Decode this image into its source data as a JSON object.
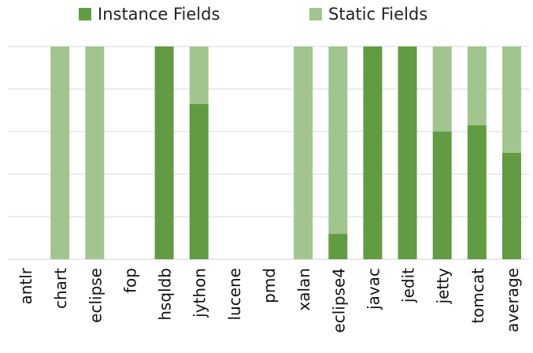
{
  "chart_data": {
    "type": "bar",
    "stacked": true,
    "normalized": true,
    "categories": [
      "antlr",
      "chart",
      "eclipse",
      "fop",
      "hsqldb",
      "jython",
      "lucene",
      "pmd",
      "xalan",
      "eclipse4",
      "javac",
      "jedit",
      "jetty",
      "tomcat",
      "average"
    ],
    "series": [
      {
        "name": "Instance Fields",
        "color": "#629c42",
        "values": [
          0,
          0,
          0,
          0,
          1.0,
          0.73,
          0,
          0,
          0,
          0.12,
          1.0,
          1.0,
          0.6,
          0.63,
          0.5
        ]
      },
      {
        "name": "Static Fields",
        "color": "#a2c58f",
        "values": [
          0,
          1.0,
          1.0,
          0,
          0,
          0.27,
          0,
          0,
          1.0,
          0.88,
          0,
          0,
          0.4,
          0.37,
          0.5
        ]
      }
    ],
    "ylim": [
      0,
      1
    ],
    "grid": true,
    "legend_position": "top",
    "xlabel": "",
    "ylabel": ""
  }
}
